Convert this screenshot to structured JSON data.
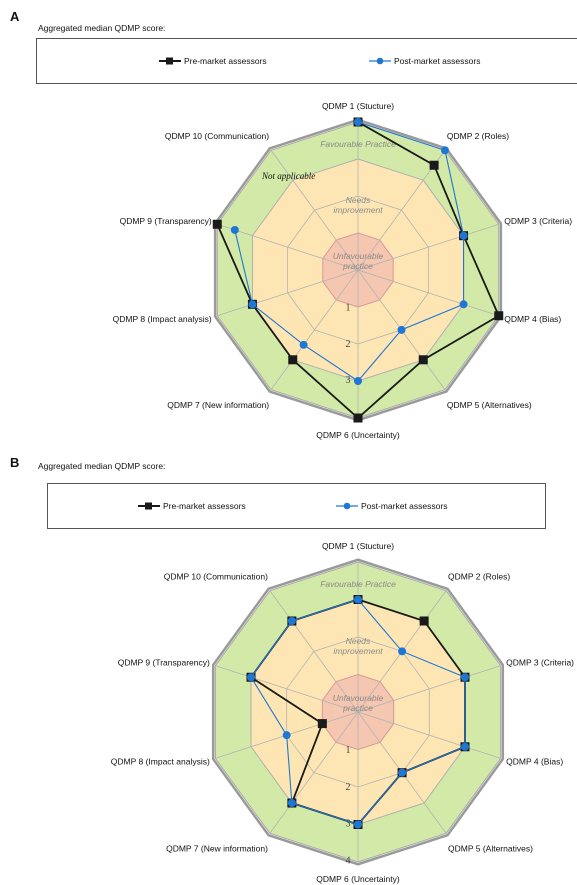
{
  "chart_data": [
    {
      "type": "radar",
      "panel": "A",
      "subtitle": "Aggregated median QDMP score:",
      "axes": [
        "QDMP 1 (Stucture)",
        "QDMP 2 (Roles)",
        "QDMP 3 (Criteria)",
        "QDMP 4 (Bias)",
        "QDMP 5 (Alternatives)",
        "QDMP 6 (Uncertainty)",
        "QDMP 7 (New information)",
        "QDMP 8 (Impact analysis)",
        "QDMP 9 (Transparency)",
        "QDMP 10 (Communication)"
      ],
      "rlim": [
        0,
        4
      ],
      "ticks": [
        "1",
        "2",
        "3"
      ],
      "zones": [
        "Unfavourable practice",
        "Needs improvement",
        "Favourable Practice"
      ],
      "annotation": "Not applicable",
      "series": [
        {
          "name": "Pre-market assessors",
          "color": "#1a1a1a",
          "marker": "square",
          "values": [
            4,
            3.5,
            3,
            4,
            3,
            4,
            3,
            3,
            4,
            null
          ]
        },
        {
          "name": "Post-market assessors",
          "color": "#1f77d4",
          "marker": "circle",
          "values": [
            4,
            4,
            3,
            3,
            2,
            3,
            2.5,
            3,
            3.5,
            null
          ]
        }
      ]
    },
    {
      "type": "radar",
      "panel": "B",
      "subtitle": "Aggregated median QDMP score:",
      "axes": [
        "QDMP 1 (Stucture)",
        "QDMP 2 (Roles)",
        "QDMP 3 (Criteria)",
        "QDMP 4 (Bias)",
        "QDMP 5 (Alternatives)",
        "QDMP 6 (Uncertainty)",
        "QDMP 7 (New information)",
        "QDMP 8 (Impact analysis)",
        "QDMP 9 (Transparency)",
        "QDMP 10 (Communication)"
      ],
      "rlim": [
        0,
        4
      ],
      "ticks": [
        "1",
        "2",
        "3",
        "4"
      ],
      "zones": [
        "Unfavourable practice",
        "Needs improvement",
        "Favourable Practice"
      ],
      "series": [
        {
          "name": "Pre-market assessors",
          "color": "#1a1a1a",
          "marker": "square",
          "values": [
            3,
            3,
            3,
            3,
            2,
            3,
            3,
            1,
            3,
            3
          ]
        },
        {
          "name": "Post-market assessors",
          "color": "#1f77d4",
          "marker": "circle",
          "values": [
            3,
            2,
            3,
            3,
            2,
            3,
            3,
            2,
            3,
            3
          ]
        }
      ]
    }
  ]
}
